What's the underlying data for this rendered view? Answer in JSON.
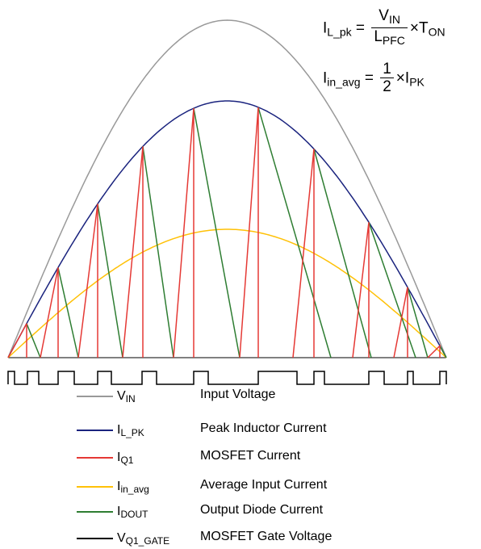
{
  "equations": {
    "eq1": {
      "lhs_main": "I",
      "lhs_sub": "L_pk",
      "eq": "=",
      "num_main": "V",
      "num_sub": "IN",
      "den_main": "L",
      "den_sub": "PFC",
      "times": "×",
      "rhs_main": "T",
      "rhs_sub": "ON"
    },
    "eq2": {
      "lhs_main": "I",
      "lhs_sub": "in_avg",
      "eq": "=",
      "num": "1",
      "den": "2",
      "times": "×",
      "rhs_main": "I",
      "rhs_sub": "PK"
    }
  },
  "legend": [
    {
      "main": "V",
      "sub": "IN",
      "desc": "Input Voltage",
      "color": "#999999"
    },
    {
      "main": "I",
      "sub": "L_PK",
      "desc": "Peak Inductor Current",
      "color": "#1a237e"
    },
    {
      "main": "I",
      "sub": "Q1",
      "desc": "MOSFET Current",
      "color": "#e53935"
    },
    {
      "main": "I",
      "sub": "in_avg",
      "desc": "Average Input Current",
      "color": "#ffc107"
    },
    {
      "main": "I",
      "sub": "DOUT",
      "desc": "Output Diode Current",
      "color": "#2e7d32"
    },
    {
      "main": "V",
      "sub": "Q1_GATE",
      "desc": "MOSFET Gate Voltage",
      "color": "#000000"
    }
  ]
}
